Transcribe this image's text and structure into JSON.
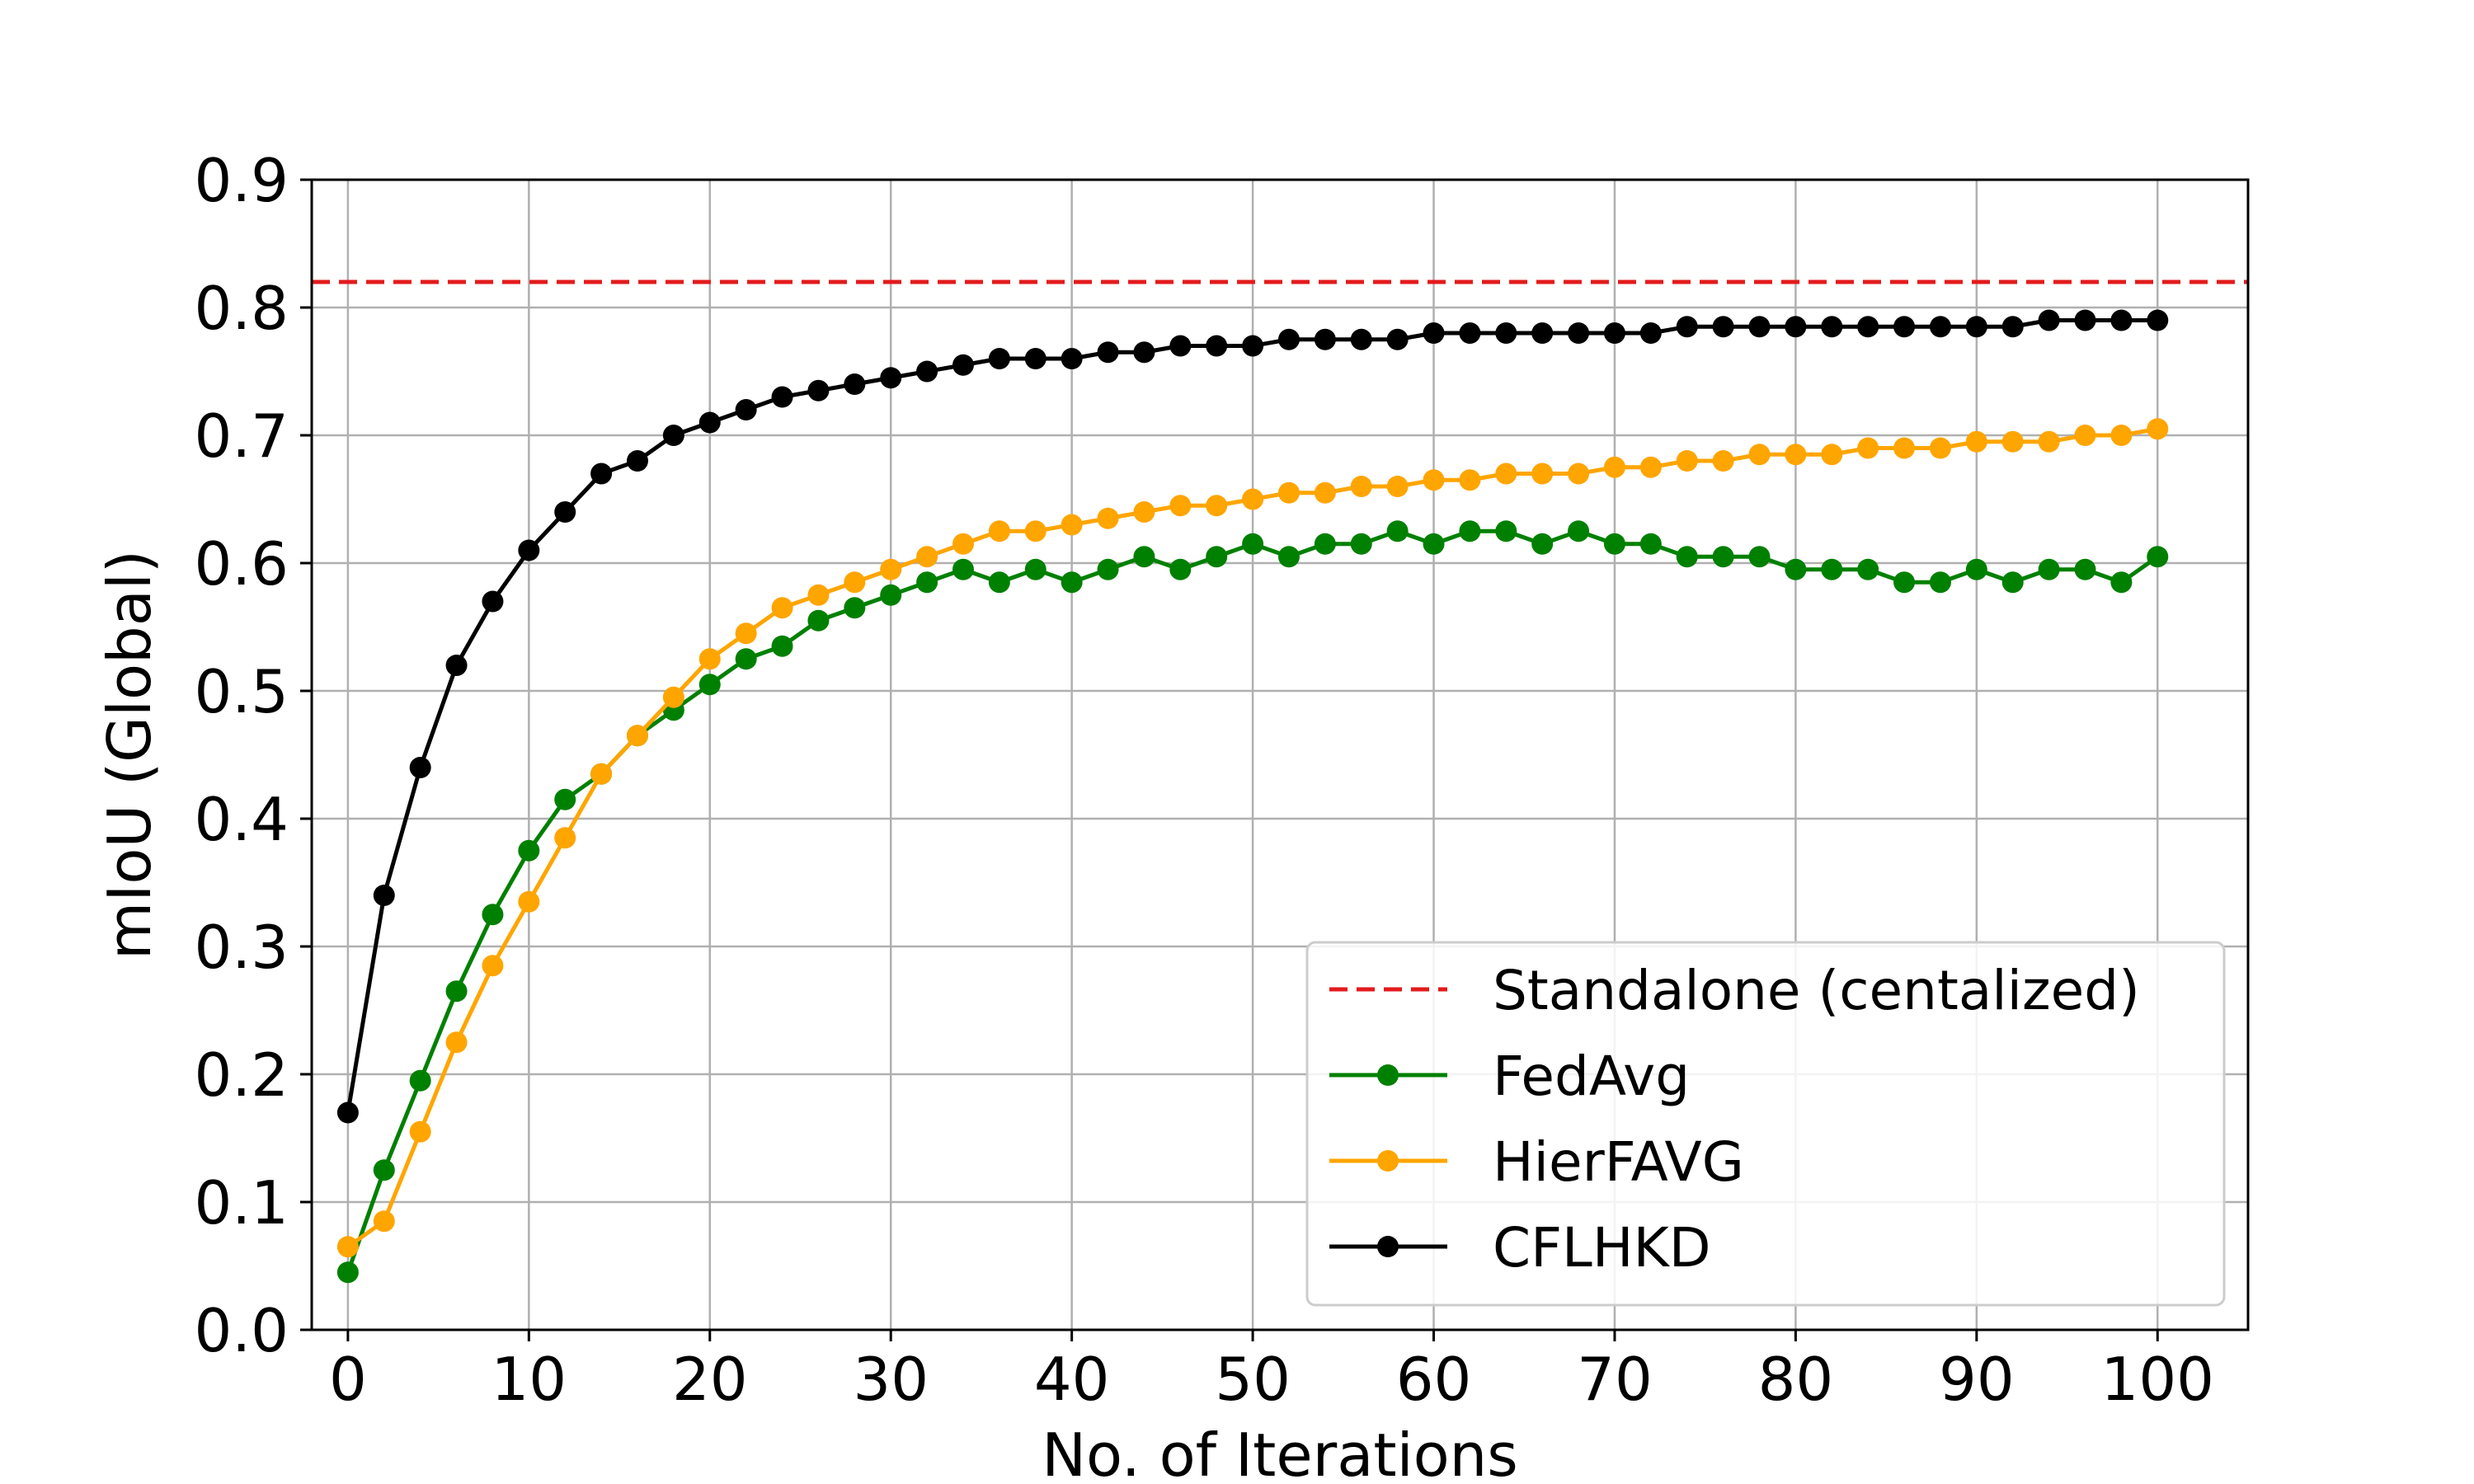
{
  "chart_data": {
    "type": "line",
    "title": "",
    "xlabel": "No. of Iterations",
    "ylabel": "mIoU (Global)",
    "xlim": [
      -2,
      105
    ],
    "ylim": [
      0.0,
      0.9
    ],
    "xticks": [
      0,
      10,
      20,
      30,
      40,
      50,
      60,
      70,
      80,
      90,
      100
    ],
    "xtick_labels": [
      "0",
      "10",
      "20",
      "30",
      "40",
      "50",
      "60",
      "70",
      "80",
      "90",
      "100"
    ],
    "yticks": [
      0.0,
      0.1,
      0.2,
      0.3,
      0.4,
      0.5,
      0.6,
      0.7,
      0.8,
      0.9
    ],
    "ytick_labels": [
      "0.0",
      "0.1",
      "0.2",
      "0.3",
      "0.4",
      "0.5",
      "0.6",
      "0.7",
      "0.8",
      "0.9"
    ],
    "grid": true,
    "legend_position": "lower-right",
    "x": [
      0,
      2,
      4,
      6,
      8,
      10,
      12,
      14,
      16,
      18,
      20,
      22,
      24,
      26,
      28,
      30,
      32,
      34,
      36,
      38,
      40,
      42,
      44,
      46,
      48,
      50,
      52,
      54,
      56,
      58,
      60,
      62,
      64,
      66,
      68,
      70,
      72,
      74,
      76,
      78,
      80,
      82,
      84,
      86,
      88,
      90,
      92,
      94,
      96,
      98,
      100
    ],
    "reference_line": {
      "name": "Standalone (centalized)",
      "value": 0.82,
      "color": "#e31a1c",
      "style": "dashed"
    },
    "series": [
      {
        "name": "FedAvg",
        "color": "#008000",
        "values": [
          0.045,
          0.125,
          0.195,
          0.265,
          0.325,
          0.375,
          0.415,
          0.435,
          0.465,
          0.485,
          0.505,
          0.525,
          0.535,
          0.555,
          0.565,
          0.575,
          0.585,
          0.595,
          0.585,
          0.595,
          0.585,
          0.595,
          0.605,
          0.595,
          0.605,
          0.615,
          0.605,
          0.615,
          0.615,
          0.625,
          0.615,
          0.625,
          0.625,
          0.615,
          0.625,
          0.615,
          0.615,
          0.605,
          0.605,
          0.605,
          0.595,
          0.595,
          0.595,
          0.585,
          0.585,
          0.595,
          0.585,
          0.595,
          0.595,
          0.585,
          0.605
        ]
      },
      {
        "name": "HierFAVG",
        "color": "#ffa500",
        "values": [
          0.065,
          0.085,
          0.155,
          0.225,
          0.285,
          0.335,
          0.385,
          0.435,
          0.465,
          0.495,
          0.525,
          0.545,
          0.565,
          0.575,
          0.585,
          0.595,
          0.605,
          0.615,
          0.625,
          0.625,
          0.63,
          0.635,
          0.64,
          0.645,
          0.645,
          0.65,
          0.655,
          0.655,
          0.66,
          0.66,
          0.665,
          0.665,
          0.67,
          0.67,
          0.67,
          0.675,
          0.675,
          0.68,
          0.68,
          0.685,
          0.685,
          0.685,
          0.69,
          0.69,
          0.69,
          0.695,
          0.695,
          0.695,
          0.7,
          0.7,
          0.705
        ]
      },
      {
        "name": "CFLHKD",
        "color": "#000000",
        "values": [
          0.17,
          0.34,
          0.44,
          0.52,
          0.57,
          0.61,
          0.64,
          0.67,
          0.68,
          0.7,
          0.71,
          0.72,
          0.73,
          0.735,
          0.74,
          0.745,
          0.75,
          0.755,
          0.76,
          0.76,
          0.76,
          0.765,
          0.765,
          0.77,
          0.77,
          0.77,
          0.775,
          0.775,
          0.775,
          0.775,
          0.78,
          0.78,
          0.78,
          0.78,
          0.78,
          0.78,
          0.78,
          0.785,
          0.785,
          0.785,
          0.785,
          0.785,
          0.785,
          0.785,
          0.785,
          0.785,
          0.785,
          0.79,
          0.79,
          0.79,
          0.79
        ]
      }
    ]
  }
}
